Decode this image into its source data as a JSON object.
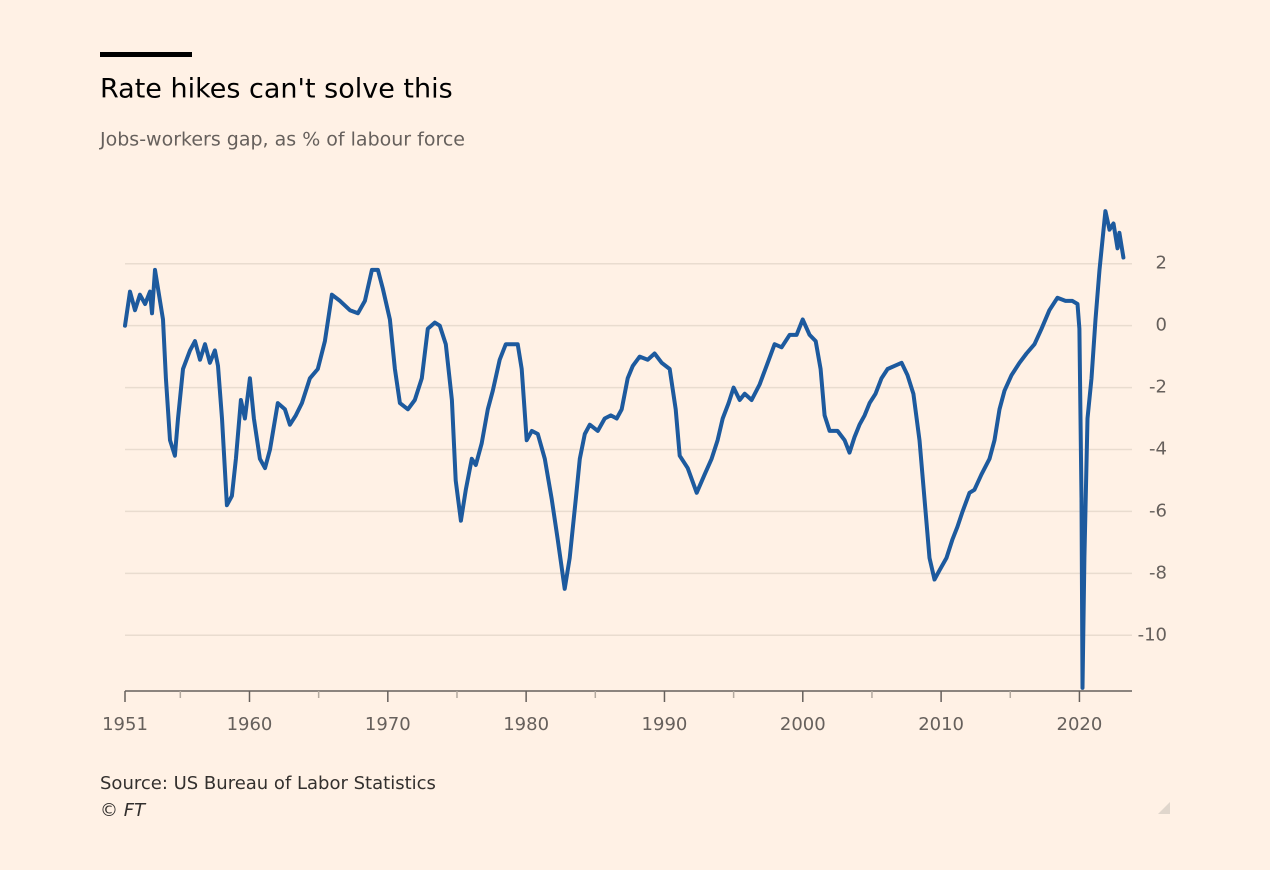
{
  "chart_data": {
    "type": "line",
    "title": "Rate hikes can't solve this",
    "subtitle": "Jobs-workers gap, as % of labour force",
    "source": "Source: US Bureau of Labor Statistics",
    "credit": "© FT",
    "color": "#1d5a9e",
    "xlim": [
      1951,
      2023.8
    ],
    "xticks": [
      1951,
      1960,
      1970,
      1980,
      1990,
      2000,
      2010,
      2020
    ],
    "xminorticks": [
      1955,
      1965,
      1975,
      1985,
      1995,
      2005,
      2015
    ],
    "ylim": [
      -11.8,
      3.8
    ],
    "yticks": [
      2,
      0,
      -2,
      -4,
      -6,
      -8,
      -10
    ],
    "grid": true,
    "x": [
      1951.0,
      1951.36,
      1951.72,
      1952.08,
      1952.45,
      1952.81,
      1952.95,
      1953.17,
      1953.53,
      1953.75,
      1953.96,
      1954.25,
      1954.61,
      1954.83,
      1955.19,
      1955.7,
      1956.06,
      1956.42,
      1956.78,
      1957.14,
      1957.5,
      1957.72,
      1958.01,
      1958.37,
      1958.73,
      1959.02,
      1959.38,
      1959.67,
      1960.03,
      1960.32,
      1960.75,
      1961.12,
      1961.48,
      1962.05,
      1962.56,
      1962.92,
      1963.35,
      1963.79,
      1964.37,
      1964.94,
      1965.45,
      1965.96,
      1966.54,
      1967.26,
      1967.84,
      1968.34,
      1968.85,
      1969.28,
      1969.64,
      1970.15,
      1970.51,
      1970.87,
      1971.45,
      1971.95,
      1972.46,
      1972.89,
      1973.4,
      1973.76,
      1974.19,
      1974.63,
      1974.91,
      1975.28,
      1975.64,
      1976.07,
      1976.36,
      1976.79,
      1977.23,
      1977.59,
      1978.09,
      1978.53,
      1978.96,
      1979.39,
      1979.68,
      1980.04,
      1980.41,
      1980.84,
      1981.35,
      1981.85,
      1982.28,
      1982.79,
      1983.15,
      1983.59,
      1983.88,
      1984.24,
      1984.6,
      1985.18,
      1985.68,
      1986.12,
      1986.55,
      1986.91,
      1987.34,
      1987.71,
      1988.21,
      1988.79,
      1989.29,
      1989.8,
      1990.38,
      1990.81,
      1991.1,
      1991.68,
      1992.33,
      1992.91,
      1993.41,
      1993.84,
      1994.21,
      1994.64,
      1995.0,
      1995.44,
      1995.8,
      1996.3,
      1996.88,
      1997.46,
      1997.96,
      1998.47,
      1999.05,
      1999.55,
      1999.99,
      2000.49,
      2000.93,
      2001.29,
      2001.58,
      2001.94,
      2002.51,
      2003.02,
      2003.38,
      2003.74,
      2004.1,
      2004.47,
      2004.83,
      2005.26,
      2005.69,
      2006.13,
      2006.63,
      2007.14,
      2007.57,
      2008.0,
      2008.44,
      2008.8,
      2009.16,
      2009.52,
      2009.88,
      2010.39,
      2010.82,
      2011.18,
      2011.55,
      2012.05,
      2012.41,
      2012.92,
      2013.5,
      2013.86,
      2014.22,
      2014.58,
      2015.09,
      2015.67,
      2016.17,
      2016.75,
      2017.26,
      2017.83,
      2018.41,
      2018.99,
      2019.49,
      2019.86,
      2020.0,
      2020.15,
      2020.22,
      2020.36,
      2020.58,
      2020.87,
      2021.16,
      2021.45,
      2021.88,
      2022.17,
      2022.46,
      2022.75,
      2022.89,
      2023.18
    ],
    "values": [
      0,
      1.1,
      0.5,
      1.0,
      0.7,
      1.1,
      0.4,
      1.8,
      0.8,
      0.2,
      -1.7,
      -3.7,
      -4.2,
      -3.0,
      -1.4,
      -0.8,
      -0.5,
      -1.1,
      -0.6,
      -1.2,
      -0.8,
      -1.3,
      -3.0,
      -5.8,
      -5.5,
      -4.3,
      -2.4,
      -3.0,
      -1.7,
      -3.0,
      -4.3,
      -4.6,
      -4.0,
      -2.5,
      -2.7,
      -3.2,
      -2.9,
      -2.5,
      -1.7,
      -1.4,
      -0.5,
      1.0,
      0.8,
      0.5,
      0.4,
      0.8,
      1.8,
      1.8,
      1.2,
      0.2,
      -1.4,
      -2.5,
      -2.7,
      -2.4,
      -1.7,
      -0.1,
      0.1,
      0.0,
      -0.6,
      -2.4,
      -5.0,
      -6.3,
      -5.3,
      -4.3,
      -4.5,
      -3.8,
      -2.7,
      -2.1,
      -1.1,
      -0.6,
      -0.6,
      -0.6,
      -1.4,
      -3.7,
      -3.4,
      -3.5,
      -4.3,
      -5.6,
      -6.9,
      -8.5,
      -7.5,
      -5.6,
      -4.3,
      -3.5,
      -3.2,
      -3.4,
      -3.0,
      -2.9,
      -3.0,
      -2.7,
      -1.7,
      -1.3,
      -1.0,
      -1.1,
      -0.9,
      -1.2,
      -1.4,
      -2.7,
      -4.2,
      -4.6,
      -5.4,
      -4.8,
      -4.3,
      -3.7,
      -3.0,
      -2.5,
      -2.0,
      -2.4,
      -2.2,
      -2.4,
      -1.9,
      -1.2,
      -0.6,
      -0.7,
      -0.3,
      -0.3,
      0.2,
      -0.3,
      -0.5,
      -1.4,
      -2.9,
      -3.4,
      -3.4,
      -3.7,
      -4.1,
      -3.6,
      -3.2,
      -2.9,
      -2.5,
      -2.2,
      -1.7,
      -1.4,
      -1.3,
      -1.2,
      -1.6,
      -2.2,
      -3.7,
      -5.6,
      -7.5,
      -8.2,
      -7.9,
      -7.5,
      -6.9,
      -6.5,
      -6.0,
      -5.4,
      -5.3,
      -4.8,
      -4.3,
      -3.7,
      -2.7,
      -2.1,
      -1.6,
      -1.2,
      -0.9,
      -0.6,
      -0.1,
      0.5,
      0.9,
      0.8,
      0.8,
      0.7,
      -0.1,
      -5.6,
      -11.7,
      -7.5,
      -3.0,
      -1.7,
      0.2,
      1.8,
      3.7,
      3.1,
      3.3,
      2.5,
      3.0,
      2.2
    ]
  }
}
